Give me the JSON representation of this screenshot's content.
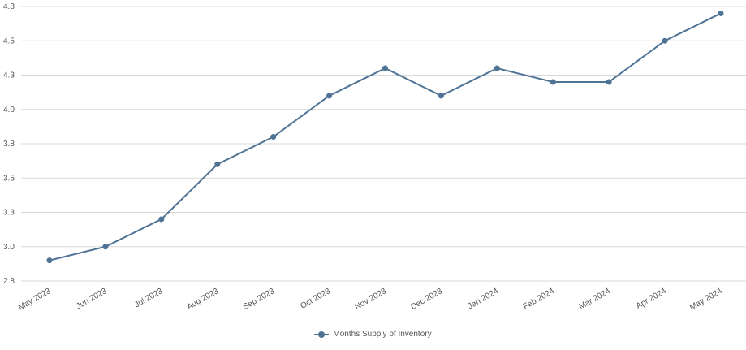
{
  "chart_data": {
    "type": "line",
    "title": "",
    "xlabel": "",
    "ylabel": "",
    "categories": [
      "May 2023",
      "Jun 2023",
      "Jul 2023",
      "Aug 2023",
      "Sep 2023",
      "Oct 2023",
      "Nov 2023",
      "Dec 2023",
      "Jan 2024",
      "Feb 2024",
      "Mar 2024",
      "Apr 2024",
      "May 2024"
    ],
    "series": [
      {
        "name": "Months Supply of Inventory",
        "values": [
          2.9,
          3.0,
          3.2,
          3.6,
          3.8,
          4.1,
          4.3,
          4.1,
          4.3,
          4.2,
          4.2,
          4.5,
          4.7
        ],
        "color": "#4e7395"
      }
    ],
    "y_ticks": [
      "2.8",
      "3.0",
      "3.3",
      "3.5",
      "3.8",
      "4.0",
      "4.3",
      "4.5",
      "4.8"
    ],
    "y_tick_values": [
      2.75,
      3.0,
      3.25,
      3.5,
      3.75,
      4.0,
      4.25,
      4.5,
      4.75
    ],
    "ylim": [
      2.75,
      4.75
    ],
    "grid": true,
    "legend_position": "bottom"
  },
  "colors": {
    "series": "#4e7395",
    "grid": "#d9d9d9",
    "text": "#555555"
  }
}
